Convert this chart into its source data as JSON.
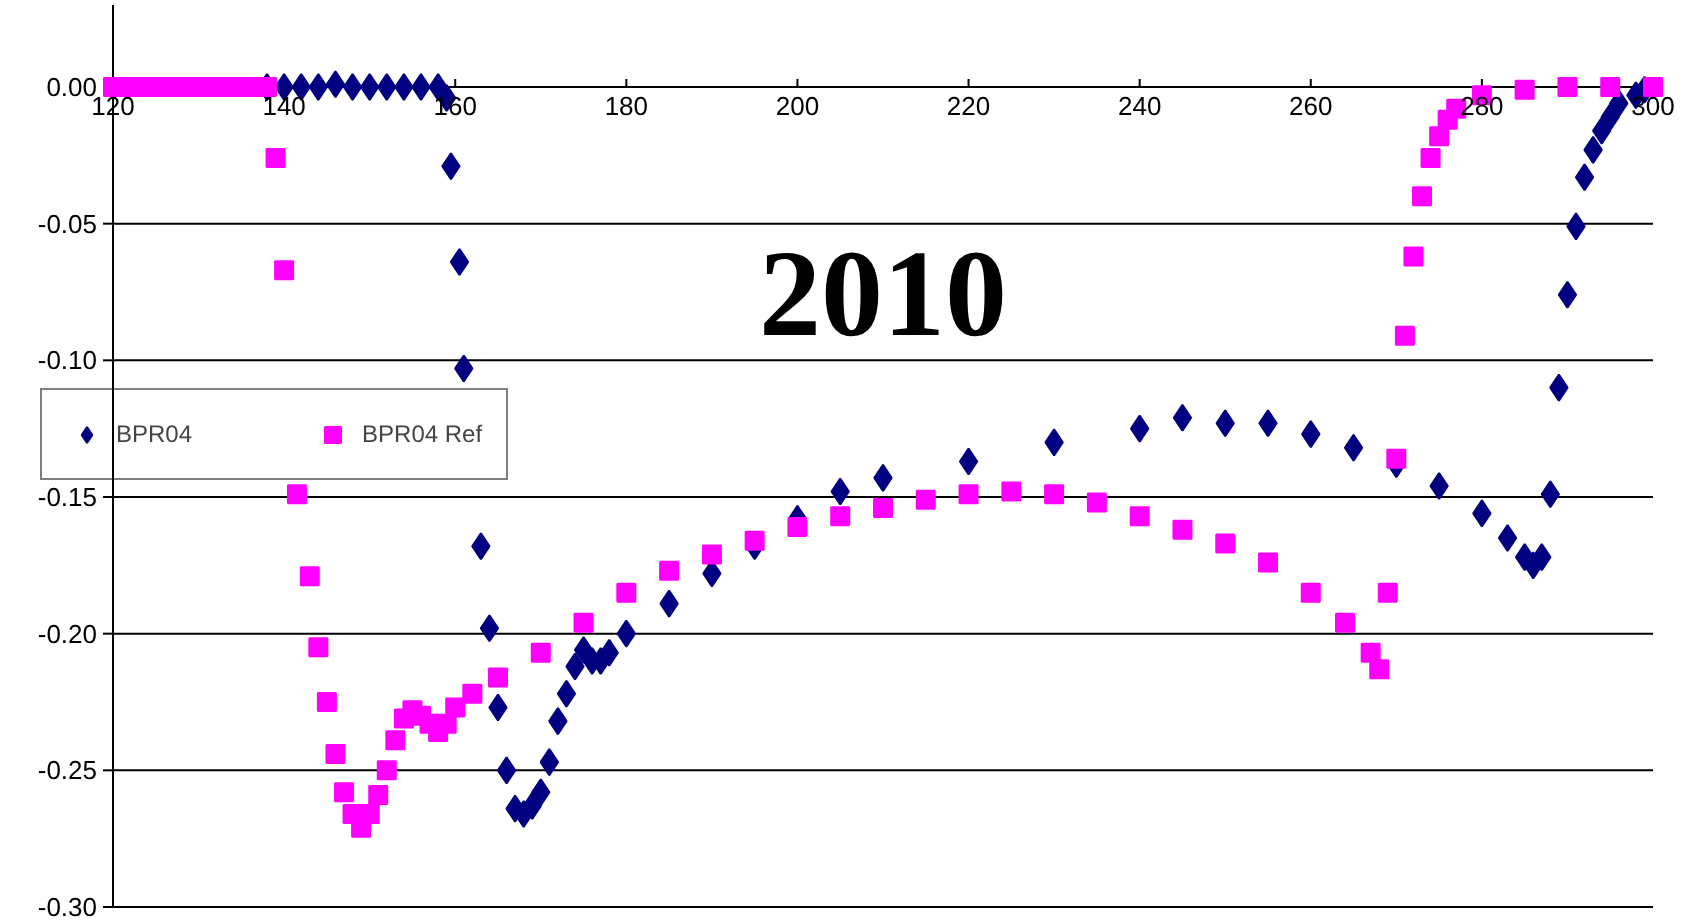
{
  "chart_data": {
    "type": "scatter",
    "title": "2010",
    "xlim": [
      120,
      300
    ],
    "xticks": [
      120,
      140,
      160,
      180,
      200,
      220,
      240,
      260,
      280,
      300
    ],
    "ylim": [
      -0.3,
      0.03
    ],
    "yticks": [
      {
        "value": 0,
        "label": "0.00"
      },
      {
        "value": -0.05,
        "label": "-0.05"
      },
      {
        "value": -0.1,
        "label": "-0.10"
      },
      {
        "value": -0.15,
        "label": "-0.15"
      },
      {
        "value": -0.2,
        "label": "-0.20"
      },
      {
        "value": -0.25,
        "label": "-0.25"
      },
      {
        "value": -0.3,
        "label": "-0.30"
      }
    ],
    "grid": "y",
    "legend": "left",
    "series": [
      {
        "name": "BPR04",
        "color": "#000080",
        "marker": "diamond",
        "x": [
          138,
          140,
          142,
          144,
          146,
          148,
          150,
          152,
          154,
          156,
          158,
          159,
          159.5,
          160.5,
          161,
          163,
          164,
          165,
          166,
          167,
          168,
          169,
          170,
          171,
          172,
          173,
          174,
          175,
          176,
          177,
          178,
          180,
          185,
          190,
          195,
          200,
          205,
          210,
          220,
          230,
          240,
          245,
          250,
          255,
          260,
          265,
          270,
          275,
          280,
          283,
          285,
          286,
          287,
          288,
          289,
          290,
          291,
          292,
          293,
          294,
          295,
          296,
          298,
          299
        ],
        "values": [
          0,
          0,
          0,
          0,
          0.001,
          0,
          0,
          0,
          0,
          0,
          0,
          -0.004,
          -0.029,
          -0.064,
          -0.103,
          -0.168,
          -0.198,
          -0.227,
          -0.25,
          -0.264,
          -0.266,
          -0.263,
          -0.258,
          -0.247,
          -0.232,
          -0.222,
          -0.212,
          -0.206,
          -0.21,
          -0.21,
          -0.207,
          -0.2,
          -0.189,
          -0.178,
          -0.168,
          -0.158,
          -0.148,
          -0.143,
          -0.137,
          -0.13,
          -0.125,
          -0.121,
          -0.123,
          -0.123,
          -0.127,
          -0.132,
          -0.138,
          -0.146,
          -0.156,
          -0.165,
          -0.172,
          -0.175,
          -0.172,
          -0.149,
          -0.11,
          -0.076,
          -0.051,
          -0.033,
          -0.023,
          -0.016,
          -0.011,
          -0.006,
          -0.003,
          -0.001
        ]
      },
      {
        "name": "BPR04 Ref",
        "color": "#ff00ff",
        "marker": "square",
        "x": [
          120,
          122,
          124,
          126,
          128,
          130,
          132,
          134,
          136,
          138,
          139,
          140,
          141.5,
          143,
          144,
          145,
          146,
          147,
          148,
          149,
          150,
          151,
          152,
          153,
          154,
          155,
          156,
          157,
          158,
          159,
          160,
          162,
          165,
          170,
          175,
          180,
          185,
          190,
          195,
          200,
          205,
          210,
          215,
          220,
          225,
          230,
          235,
          240,
          245,
          250,
          255,
          260,
          264,
          267,
          268,
          269,
          270,
          271,
          272,
          273,
          274,
          275,
          276,
          277,
          280,
          285,
          290,
          295,
          300
        ],
        "values": [
          0,
          0,
          0,
          0,
          0,
          0,
          0,
          0,
          0,
          0,
          -0.026,
          -0.067,
          -0.149,
          -0.179,
          -0.205,
          -0.225,
          -0.244,
          -0.258,
          -0.266,
          -0.271,
          -0.266,
          -0.259,
          -0.25,
          -0.239,
          -0.231,
          -0.228,
          -0.23,
          -0.233,
          -0.236,
          -0.233,
          -0.227,
          -0.222,
          -0.216,
          -0.207,
          -0.196,
          -0.185,
          -0.177,
          -0.171,
          -0.166,
          -0.161,
          -0.157,
          -0.154,
          -0.151,
          -0.149,
          -0.148,
          -0.149,
          -0.152,
          -0.157,
          -0.162,
          -0.167,
          -0.174,
          -0.185,
          -0.196,
          -0.207,
          -0.213,
          -0.185,
          -0.136,
          -0.091,
          -0.062,
          -0.04,
          -0.026,
          -0.018,
          -0.012,
          -0.008,
          -0.003,
          -0.001,
          0,
          0,
          0
        ]
      }
    ]
  }
}
